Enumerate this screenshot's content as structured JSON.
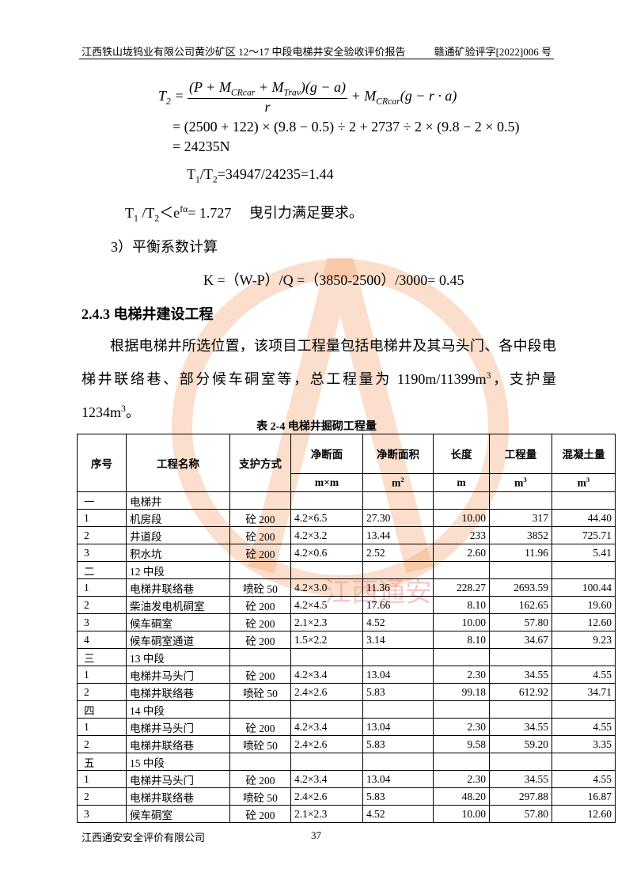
{
  "header": {
    "left": "江西铁山垅钨业有限公司黄沙矿区 12～17 中段电梯井安全验收评价报告",
    "right": "赣通矿验评字[2022]006 号"
  },
  "formula": {
    "lhs": [
      "T",
      {
        "sub": "2"
      },
      " = "
    ],
    "numerator": [
      "(P + M",
      {
        "sub": "CRcar"
      },
      " + M",
      {
        "sub": "Trav"
      },
      ")(g − a)"
    ],
    "denominator": "r",
    "rest": [
      " + M",
      {
        "sub": "CRcar"
      },
      "(g − r · a)"
    ],
    "line2": "= (2500 + 122) × (9.8 − 0.5) ÷ 2 + 2737 ÷ 2 × (9.8 − 2 × 0.5)",
    "line3": "= 24235N"
  },
  "ratio": [
    "T",
    {
      "sub": "1"
    },
    "/T",
    {
      "sub": "2"
    },
    "=34947/24235=1.44"
  ],
  "check": [
    "T",
    {
      "sub": "1"
    },
    " /T",
    {
      "sub": "2"
    },
    "＜e",
    {
      "sup": "fα"
    },
    "= 1.727　 曳引力满足要求。"
  ],
  "step3": "3）平衡系数计算",
  "kformula": "K =（W-P）/Q =（3850-2500）/3000= 0.45",
  "heading": "2.4.3 电梯井建设工程",
  "paragraph": [
    "根据电梯井所选位置，该项目工程量包括电梯井及其马头门、各中段电梯井联络巷、部分候车硐室等，总工程量为 1190m/11399m",
    {
      "sup": "3"
    },
    "，支护量 1234m",
    {
      "sup": "3"
    },
    "。"
  ],
  "table": {
    "caption": "表 2-4 电梯井掘砌工程量",
    "header": [
      "序号",
      "工程名称",
      "支护方式",
      "净断面",
      "净断面积",
      "长度",
      "工程量",
      "混凝土量"
    ],
    "units": [
      "m×m",
      [
        "m",
        {
          "sup": "2"
        }
      ],
      "m",
      [
        "m",
        {
          "sup": "3"
        }
      ],
      [
        "m",
        {
          "sup": "3"
        }
      ]
    ],
    "rows": [
      {
        "no": "一",
        "name": "电梯井"
      },
      [
        "1",
        "机房段",
        "砼 200",
        "4.2×6.5",
        "27.30",
        "10.00",
        "317",
        "44.40"
      ],
      [
        "2",
        "井道段",
        "砼 200",
        "4.2×3.2",
        "13.44",
        "233",
        "3852",
        "725.71"
      ],
      [
        "3",
        "积水坑",
        "砼 200",
        "4.2×0.6",
        "2.52",
        "2.60",
        "11.96",
        "5.41"
      ],
      {
        "no": "二",
        "name": "12 中段"
      },
      [
        "1",
        "电梯井联络巷",
        "喷砼 50",
        "4.2×3.0",
        "11.36",
        "228.27",
        "2693.59",
        "100.44"
      ],
      [
        "2",
        "柴油发电机硐室",
        "砼 200",
        "4.2×4.5",
        "17.66",
        "8.10",
        "162.65",
        "19.60"
      ],
      [
        "3",
        "候车硐室",
        "砼 200",
        "2.1×2.3",
        "4.52",
        "10.00",
        "57.80",
        "12.60"
      ],
      [
        "4",
        "候车硐室通道",
        "砼 200",
        "1.5×2.2",
        "3.14",
        "8.10",
        "34.67",
        "9.23"
      ],
      {
        "no": "三",
        "name": "13 中段"
      },
      [
        "1",
        "电梯井马头门",
        "砼 200",
        "4.2×3.4",
        "13.04",
        "2.30",
        "34.55",
        "4.55"
      ],
      [
        "2",
        "电梯井联络巷",
        "喷砼 50",
        "2.4×2.6",
        "5.83",
        "99.18",
        "612.92",
        "34.71"
      ],
      {
        "no": "四",
        "name": "14 中段"
      },
      [
        "1",
        "电梯井马头门",
        "砼 200",
        "4.2×3.4",
        "13.04",
        "2.30",
        "34.55",
        "4.55"
      ],
      [
        "2",
        "电梯井联络巷",
        "喷砼 50",
        "2.4×2.6",
        "5.83",
        "9.58",
        "59.20",
        "3.35"
      ],
      {
        "no": "五",
        "name": "15 中段"
      },
      [
        "1",
        "电梯井马头门",
        "砼 200",
        "4.2×3.4",
        "13.04",
        "2.30",
        "34.55",
        "4.55"
      ],
      [
        "2",
        "电梯井联络巷",
        "喷砼 50",
        "2.4×2.6",
        "5.83",
        "48.20",
        "297.88",
        "16.87"
      ],
      [
        "3",
        "候车硐室",
        "砼 200",
        "2.1×2.3",
        "4.52",
        "10.00",
        "57.80",
        "12.60"
      ]
    ]
  },
  "watermark": "江西通安",
  "footer": {
    "left": "江西通安安全评价有限公司",
    "page": "37"
  }
}
